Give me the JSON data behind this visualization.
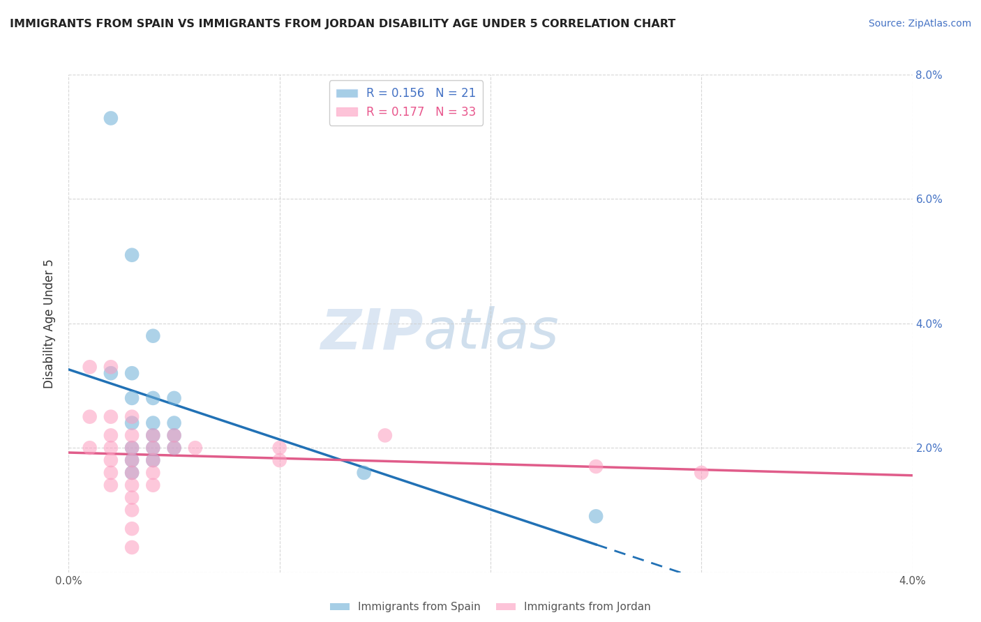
{
  "title": "IMMIGRANTS FROM SPAIN VS IMMIGRANTS FROM JORDAN DISABILITY AGE UNDER 5 CORRELATION CHART",
  "source_text": "Source: ZipAtlas.com",
  "ylabel": "Disability Age Under 5",
  "legend_label_spain": "Immigrants from Spain",
  "legend_label_jordan": "Immigrants from Jordan",
  "r_spain": 0.156,
  "n_spain": 21,
  "r_jordan": 0.177,
  "n_jordan": 33,
  "xlim": [
    0.0,
    0.04
  ],
  "ylim": [
    0.0,
    0.08
  ],
  "xticks": [
    0.0,
    0.01,
    0.02,
    0.03,
    0.04
  ],
  "yticks": [
    0.0,
    0.02,
    0.04,
    0.06,
    0.08
  ],
  "xtick_labels": [
    "0.0%",
    "",
    "",
    "",
    "4.0%"
  ],
  "ytick_labels": [
    "",
    "2.0%",
    "4.0%",
    "6.0%",
    "8.0%"
  ],
  "ytick_labels_right": [
    "",
    "2.0%",
    "4.0%",
    "6.0%",
    "8.0%"
  ],
  "watermark_left": "ZIP",
  "watermark_right": "atlas",
  "color_spain": "#6baed6",
  "color_jordan": "#fc9cbf",
  "trendline_spain_color": "#2171b5",
  "trendline_jordan_color": "#e05c8a",
  "background_color": "#ffffff",
  "grid_color": "#cccccc",
  "scatter_spain": [
    [
      0.002,
      0.073
    ],
    [
      0.003,
      0.051
    ],
    [
      0.004,
      0.038
    ],
    [
      0.002,
      0.032
    ],
    [
      0.003,
      0.032
    ],
    [
      0.003,
      0.028
    ],
    [
      0.004,
      0.028
    ],
    [
      0.005,
      0.028
    ],
    [
      0.003,
      0.024
    ],
    [
      0.004,
      0.024
    ],
    [
      0.005,
      0.024
    ],
    [
      0.004,
      0.022
    ],
    [
      0.005,
      0.022
    ],
    [
      0.003,
      0.02
    ],
    [
      0.004,
      0.02
    ],
    [
      0.005,
      0.02
    ],
    [
      0.003,
      0.018
    ],
    [
      0.004,
      0.018
    ],
    [
      0.003,
      0.016
    ],
    [
      0.014,
      0.016
    ],
    [
      0.025,
      0.009
    ]
  ],
  "scatter_jordan": [
    [
      0.001,
      0.033
    ],
    [
      0.001,
      0.025
    ],
    [
      0.001,
      0.02
    ],
    [
      0.002,
      0.033
    ],
    [
      0.002,
      0.025
    ],
    [
      0.002,
      0.022
    ],
    [
      0.002,
      0.02
    ],
    [
      0.002,
      0.018
    ],
    [
      0.002,
      0.016
    ],
    [
      0.002,
      0.014
    ],
    [
      0.003,
      0.025
    ],
    [
      0.003,
      0.022
    ],
    [
      0.003,
      0.02
    ],
    [
      0.003,
      0.018
    ],
    [
      0.003,
      0.016
    ],
    [
      0.003,
      0.014
    ],
    [
      0.003,
      0.012
    ],
    [
      0.003,
      0.01
    ],
    [
      0.003,
      0.007
    ],
    [
      0.003,
      0.004
    ],
    [
      0.004,
      0.022
    ],
    [
      0.004,
      0.02
    ],
    [
      0.004,
      0.018
    ],
    [
      0.004,
      0.016
    ],
    [
      0.004,
      0.014
    ],
    [
      0.005,
      0.022
    ],
    [
      0.005,
      0.02
    ],
    [
      0.006,
      0.02
    ],
    [
      0.01,
      0.02
    ],
    [
      0.01,
      0.018
    ],
    [
      0.015,
      0.022
    ],
    [
      0.025,
      0.017
    ],
    [
      0.03,
      0.016
    ]
  ]
}
